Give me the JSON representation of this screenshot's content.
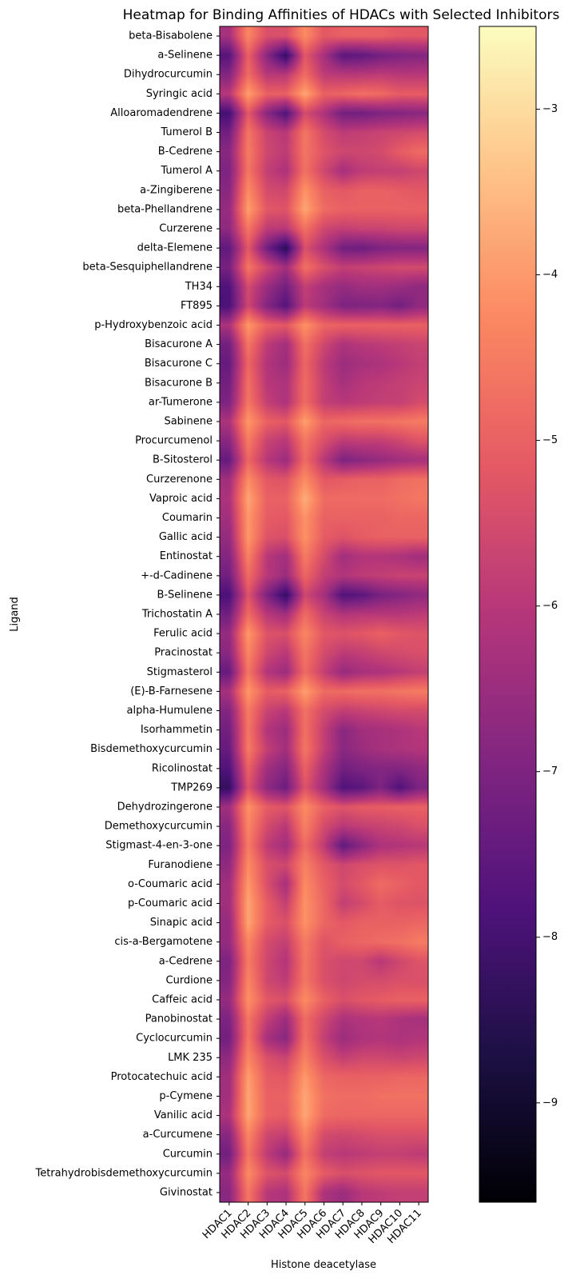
{
  "chart_data": {
    "type": "heatmap",
    "title": "Heatmap for Binding Affinities of HDACs with Selected Inhibitors",
    "xlabel": "Histone deacetylase",
    "ylabel": "Ligand",
    "colormap": "magma",
    "interpolation": "smooth",
    "x": [
      "HDAC1",
      "HDAC2",
      "HDAC3",
      "HDAC4",
      "HDAC5",
      "HDAC6",
      "HDAC7",
      "HDAC8",
      "HDAC9",
      "HDAC10",
      "HDAC11"
    ],
    "y": [
      "beta-Bisabolene",
      "a-Selinene",
      "Dihydrocurcumin",
      "Syringic acid",
      "Alloaromadendrene",
      "Tumerol B",
      "B-Cedrene",
      "Tumerol A",
      "a-Zingiberene",
      "beta-Phellandrene",
      "Curzerene",
      "delta-Elemene",
      "beta-Sesquiphellandrene",
      "TH34",
      "FT895",
      "p-Hydroxybenzoic acid",
      "Bisacurone A",
      "Bisacurone C",
      "Bisacurone B",
      "ar-Tumerone",
      "Sabinene",
      "Procurcumenol",
      "B-Sitosterol",
      "Curzerenone",
      "Vaproic acid",
      "Coumarin",
      "Gallic acid",
      "Entinostat",
      "+-d-Cadinene",
      "B-Selinene",
      "Trichostatin A",
      "Ferulic acid",
      "Pracinostat",
      "Stigmasterol",
      "(E)-B-Farnesene",
      "alpha-Humulene",
      "Isorhammetin",
      "Bisdemethoxycurcumin",
      "Ricolinostat",
      "TMP269",
      "Dehydrozingerone",
      "Demethoxycurcumin",
      "Stigmast-4-en-3-one",
      "Furanodiene",
      "o-Coumaric acid",
      "p-Coumaric acid",
      "Sinapic acid",
      "cis-a-Bergamotene",
      "a-Cedrene",
      "Curdione",
      "Caffeic acid",
      "Panobinostat",
      "Cyclocurcumin",
      "LMK 235",
      "Protocatechuic acid",
      "p-Cymene",
      "Vanilic acid",
      "a-Curcumene",
      "Curcumin",
      "Tetrahydrobisdemethoxycurcumin",
      "Givinostat"
    ],
    "values": [
      [
        -6.3,
        -4.3,
        -5.4,
        -5.4,
        -4.2,
        -5.2,
        -5.0,
        -5.0,
        -5.0,
        -5.2,
        -5.2
      ],
      [
        -7.7,
        -5.0,
        -6.8,
        -8.3,
        -5.2,
        -6.3,
        -7.6,
        -7.5,
        -7.2,
        -7.0,
        -6.9
      ],
      [
        -6.9,
        -4.8,
        -6.0,
        -6.0,
        -4.8,
        -5.9,
        -6.0,
        -6.0,
        -5.9,
        -6.0,
        -6.0
      ],
      [
        -6.0,
        -3.9,
        -5.0,
        -5.0,
        -3.8,
        -5.0,
        -4.9,
        -4.7,
        -4.8,
        -5.1,
        -5.1
      ],
      [
        -8.0,
        -5.2,
        -6.8,
        -7.8,
        -5.5,
        -6.2,
        -7.2,
        -7.2,
        -7.0,
        -6.9,
        -6.8
      ],
      [
        -7.2,
        -4.6,
        -5.7,
        -6.0,
        -4.6,
        -5.5,
        -5.9,
        -5.8,
        -5.7,
        -5.6,
        -5.5
      ],
      [
        -6.8,
        -4.5,
        -5.6,
        -5.9,
        -4.6,
        -5.3,
        -5.6,
        -5.6,
        -5.5,
        -5.1,
        -4.8
      ],
      [
        -7.0,
        -4.6,
        -5.8,
        -6.2,
        -4.7,
        -5.6,
        -6.3,
        -5.9,
        -5.8,
        -5.8,
        -5.6
      ],
      [
        -6.8,
        -4.2,
        -5.5,
        -5.6,
        -4.1,
        -5.0,
        -5.2,
        -5.0,
        -5.0,
        -5.1,
        -5.2
      ],
      [
        -6.6,
        -3.9,
        -5.2,
        -5.3,
        -3.8,
        -4.8,
        -5.0,
        -5.0,
        -5.0,
        -5.0,
        -5.0
      ],
      [
        -6.7,
        -4.6,
        -5.9,
        -6.0,
        -4.7,
        -5.6,
        -5.8,
        -5.7,
        -5.7,
        -5.6,
        -5.6
      ],
      [
        -7.5,
        -5.2,
        -7.2,
        -8.5,
        -5.4,
        -6.2,
        -7.2,
        -7.3,
        -7.0,
        -6.9,
        -6.9
      ],
      [
        -7.1,
        -4.6,
        -5.6,
        -6.4,
        -4.7,
        -5.4,
        -5.8,
        -5.7,
        -5.6,
        -5.5,
        -5.5
      ],
      [
        -7.8,
        -5.5,
        -6.5,
        -7.2,
        -5.8,
        -6.3,
        -6.6,
        -6.4,
        -6.4,
        -6.5,
        -6.7
      ],
      [
        -7.9,
        -5.6,
        -6.9,
        -7.7,
        -5.9,
        -6.4,
        -7.0,
        -7.0,
        -6.9,
        -7.2,
        -6.7
      ],
      [
        -6.2,
        -4.0,
        -5.0,
        -5.2,
        -4.1,
        -4.9,
        -5.0,
        -5.0,
        -5.0,
        -5.0,
        -5.0
      ],
      [
        -7.2,
        -4.6,
        -5.9,
        -6.4,
        -4.7,
        -5.6,
        -6.2,
        -6.0,
        -5.9,
        -5.8,
        -5.7
      ],
      [
        -7.4,
        -4.9,
        -6.1,
        -6.5,
        -4.9,
        -5.9,
        -6.5,
        -6.3,
        -6.2,
        -6.0,
        -5.8
      ],
      [
        -7.2,
        -4.7,
        -6.0,
        -6.2,
        -4.8,
        -5.8,
        -6.3,
        -6.0,
        -5.9,
        -5.8,
        -5.7
      ],
      [
        -7.0,
        -4.6,
        -5.8,
        -6.2,
        -4.8,
        -5.8,
        -6.0,
        -5.9,
        -5.8,
        -5.8,
        -5.5
      ],
      [
        -6.2,
        -4.0,
        -5.0,
        -5.2,
        -3.9,
        -4.9,
        -4.8,
        -4.7,
        -4.7,
        -4.6,
        -4.5
      ],
      [
        -6.8,
        -4.5,
        -5.7,
        -6.0,
        -4.6,
        -5.4,
        -5.9,
        -5.8,
        -5.8,
        -5.6,
        -5.3
      ],
      [
        -7.4,
        -4.9,
        -6.0,
        -6.5,
        -4.8,
        -6.0,
        -7.0,
        -6.8,
        -6.6,
        -6.4,
        -6.3
      ],
      [
        -6.4,
        -4.2,
        -5.2,
        -5.3,
        -4.2,
        -5.2,
        -5.1,
        -5.0,
        -5.0,
        -4.8,
        -4.7
      ],
      [
        -6.2,
        -3.8,
        -5.0,
        -5.0,
        -3.7,
        -4.8,
        -4.8,
        -4.8,
        -4.8,
        -4.7,
        -4.6
      ],
      [
        -6.4,
        -4.0,
        -5.1,
        -5.2,
        -4.1,
        -5.0,
        -5.0,
        -5.0,
        -5.0,
        -4.9,
        -4.9
      ],
      [
        -6.6,
        -4.0,
        -5.3,
        -5.4,
        -4.1,
        -5.1,
        -5.3,
        -5.1,
        -5.0,
        -5.0,
        -5.0
      ],
      [
        -6.9,
        -4.4,
        -6.0,
        -6.4,
        -4.5,
        -5.5,
        -6.4,
        -6.1,
        -6.1,
        -6.2,
        -6.4
      ],
      [
        -7.2,
        -4.8,
        -6.0,
        -6.5,
        -4.9,
        -5.8,
        -6.1,
        -5.9,
        -5.8,
        -5.7,
        -5.7
      ],
      [
        -7.9,
        -5.3,
        -7.0,
        -8.3,
        -5.6,
        -6.3,
        -7.8,
        -7.6,
        -7.1,
        -6.9,
        -6.7
      ],
      [
        -7.2,
        -4.8,
        -6.0,
        -6.4,
        -4.8,
        -5.7,
        -6.1,
        -6.0,
        -6.0,
        -6.0,
        -5.9
      ],
      [
        -6.6,
        -4.0,
        -5.3,
        -5.4,
        -4.3,
        -5.2,
        -5.3,
        -5.2,
        -5.0,
        -5.2,
        -5.3
      ],
      [
        -6.8,
        -4.3,
        -5.6,
        -6.0,
        -4.6,
        -5.5,
        -5.9,
        -5.8,
        -5.6,
        -5.5,
        -5.4
      ],
      [
        -7.4,
        -4.6,
        -6.1,
        -6.5,
        -4.8,
        -5.8,
        -6.6,
        -6.3,
        -6.2,
        -6.0,
        -5.8
      ],
      [
        -6.3,
        -4.0,
        -5.1,
        -5.0,
        -3.9,
        -4.8,
        -4.8,
        -4.7,
        -4.7,
        -4.6,
        -4.5
      ],
      [
        -6.9,
        -4.5,
        -5.7,
        -6.0,
        -4.7,
        -5.5,
        -5.8,
        -5.7,
        -5.6,
        -5.5,
        -5.5
      ],
      [
        -7.2,
        -4.6,
        -6.1,
        -6.5,
        -4.7,
        -5.8,
        -6.8,
        -6.4,
        -6.3,
        -6.2,
        -6.0
      ],
      [
        -7.4,
        -4.5,
        -5.8,
        -6.4,
        -4.6,
        -5.8,
        -6.8,
        -6.5,
        -6.3,
        -6.2,
        -6.1
      ],
      [
        -7.8,
        -5.0,
        -6.4,
        -6.9,
        -5.0,
        -6.2,
        -7.2,
        -7.0,
        -6.9,
        -6.9,
        -6.7
      ],
      [
        -8.3,
        -5.3,
        -6.7,
        -7.3,
        -5.3,
        -6.4,
        -7.8,
        -7.6,
        -7.0,
        -7.8,
        -7.0
      ],
      [
        -6.4,
        -4.1,
        -5.1,
        -5.3,
        -4.2,
        -5.0,
        -5.3,
        -5.1,
        -5.1,
        -5.0,
        -5.0
      ],
      [
        -6.8,
        -4.3,
        -5.5,
        -6.0,
        -4.4,
        -5.5,
        -6.0,
        -5.8,
        -5.7,
        -5.6,
        -5.4
      ],
      [
        -7.0,
        -4.5,
        -5.9,
        -6.4,
        -4.8,
        -5.9,
        -7.5,
        -6.8,
        -6.2,
        -6.1,
        -6.0
      ],
      [
        -6.7,
        -4.2,
        -5.4,
        -5.6,
        -4.4,
        -5.2,
        -5.6,
        -5.4,
        -5.3,
        -5.3,
        -5.2
      ],
      [
        -6.4,
        -4.0,
        -5.4,
        -6.3,
        -4.2,
        -5.0,
        -5.5,
        -5.2,
        -4.8,
        -5.0,
        -5.2
      ],
      [
        -6.4,
        -3.8,
        -5.1,
        -5.8,
        -4.1,
        -4.9,
        -5.8,
        -5.5,
        -5.1,
        -5.3,
        -5.3
      ],
      [
        -6.6,
        -3.8,
        -5.1,
        -5.4,
        -4.1,
        -4.9,
        -5.2,
        -5.0,
        -5.0,
        -5.0,
        -4.9
      ],
      [
        -6.6,
        -4.3,
        -5.5,
        -5.8,
        -4.5,
        -5.3,
        -5.0,
        -4.9,
        -4.8,
        -4.7,
        -4.5
      ],
      [
        -7.0,
        -4.5,
        -5.6,
        -6.1,
        -4.6,
        -5.4,
        -5.6,
        -5.6,
        -6.0,
        -5.6,
        -5.3
      ],
      [
        -6.9,
        -4.3,
        -5.6,
        -5.9,
        -4.6,
        -5.4,
        -5.6,
        -5.5,
        -5.5,
        -5.4,
        -5.4
      ],
      [
        -6.6,
        -4.1,
        -5.2,
        -5.4,
        -4.2,
        -5.0,
        -5.4,
        -5.2,
        -5.1,
        -5.0,
        -5.0
      ],
      [
        -7.0,
        -4.6,
        -5.8,
        -6.5,
        -4.8,
        -5.6,
        -6.2,
        -6.1,
        -6.0,
        -6.2,
        -6.3
      ],
      [
        -7.2,
        -4.6,
        -6.3,
        -6.8,
        -4.7,
        -5.8,
        -6.5,
        -6.2,
        -6.1,
        -6.2,
        -6.1
      ],
      [
        -6.7,
        -4.3,
        -5.4,
        -5.7,
        -4.4,
        -5.4,
        -5.8,
        -5.6,
        -5.6,
        -5.7,
        -5.6
      ],
      [
        -6.4,
        -3.9,
        -5.1,
        -5.2,
        -4.0,
        -4.9,
        -5.0,
        -5.0,
        -5.0,
        -4.9,
        -4.9
      ],
      [
        -6.4,
        -3.8,
        -5.0,
        -5.0,
        -3.8,
        -4.7,
        -4.8,
        -4.8,
        -4.7,
        -4.7,
        -4.7
      ],
      [
        -6.2,
        -3.8,
        -5.0,
        -5.1,
        -3.8,
        -4.8,
        -4.9,
        -4.9,
        -4.9,
        -4.9,
        -4.9
      ],
      [
        -6.8,
        -4.3,
        -5.6,
        -5.8,
        -4.3,
        -5.5,
        -5.6,
        -5.5,
        -5.4,
        -5.4,
        -5.4
      ],
      [
        -7.2,
        -4.6,
        -5.9,
        -6.6,
        -4.7,
        -5.8,
        -6.0,
        -5.9,
        -5.8,
        -5.8,
        -5.9
      ],
      [
        -6.6,
        -4.2,
        -5.3,
        -5.5,
        -4.3,
        -5.1,
        -5.4,
        -5.3,
        -5.2,
        -5.2,
        -5.2
      ],
      [
        -6.8,
        -4.6,
        -6.0,
        -6.2,
        -4.6,
        -6.2,
        -6.5,
        -6.0,
        -5.9,
        -5.8,
        -5.8
      ]
    ],
    "colorbar": {
      "range": [
        -9.6,
        -2.5
      ],
      "ticks": [
        -3,
        -4,
        -5,
        -6,
        -7,
        -8,
        -9
      ],
      "tick_labels": [
        "−3",
        "−4",
        "−5",
        "−6",
        "−7",
        "−8",
        "−9"
      ]
    }
  }
}
